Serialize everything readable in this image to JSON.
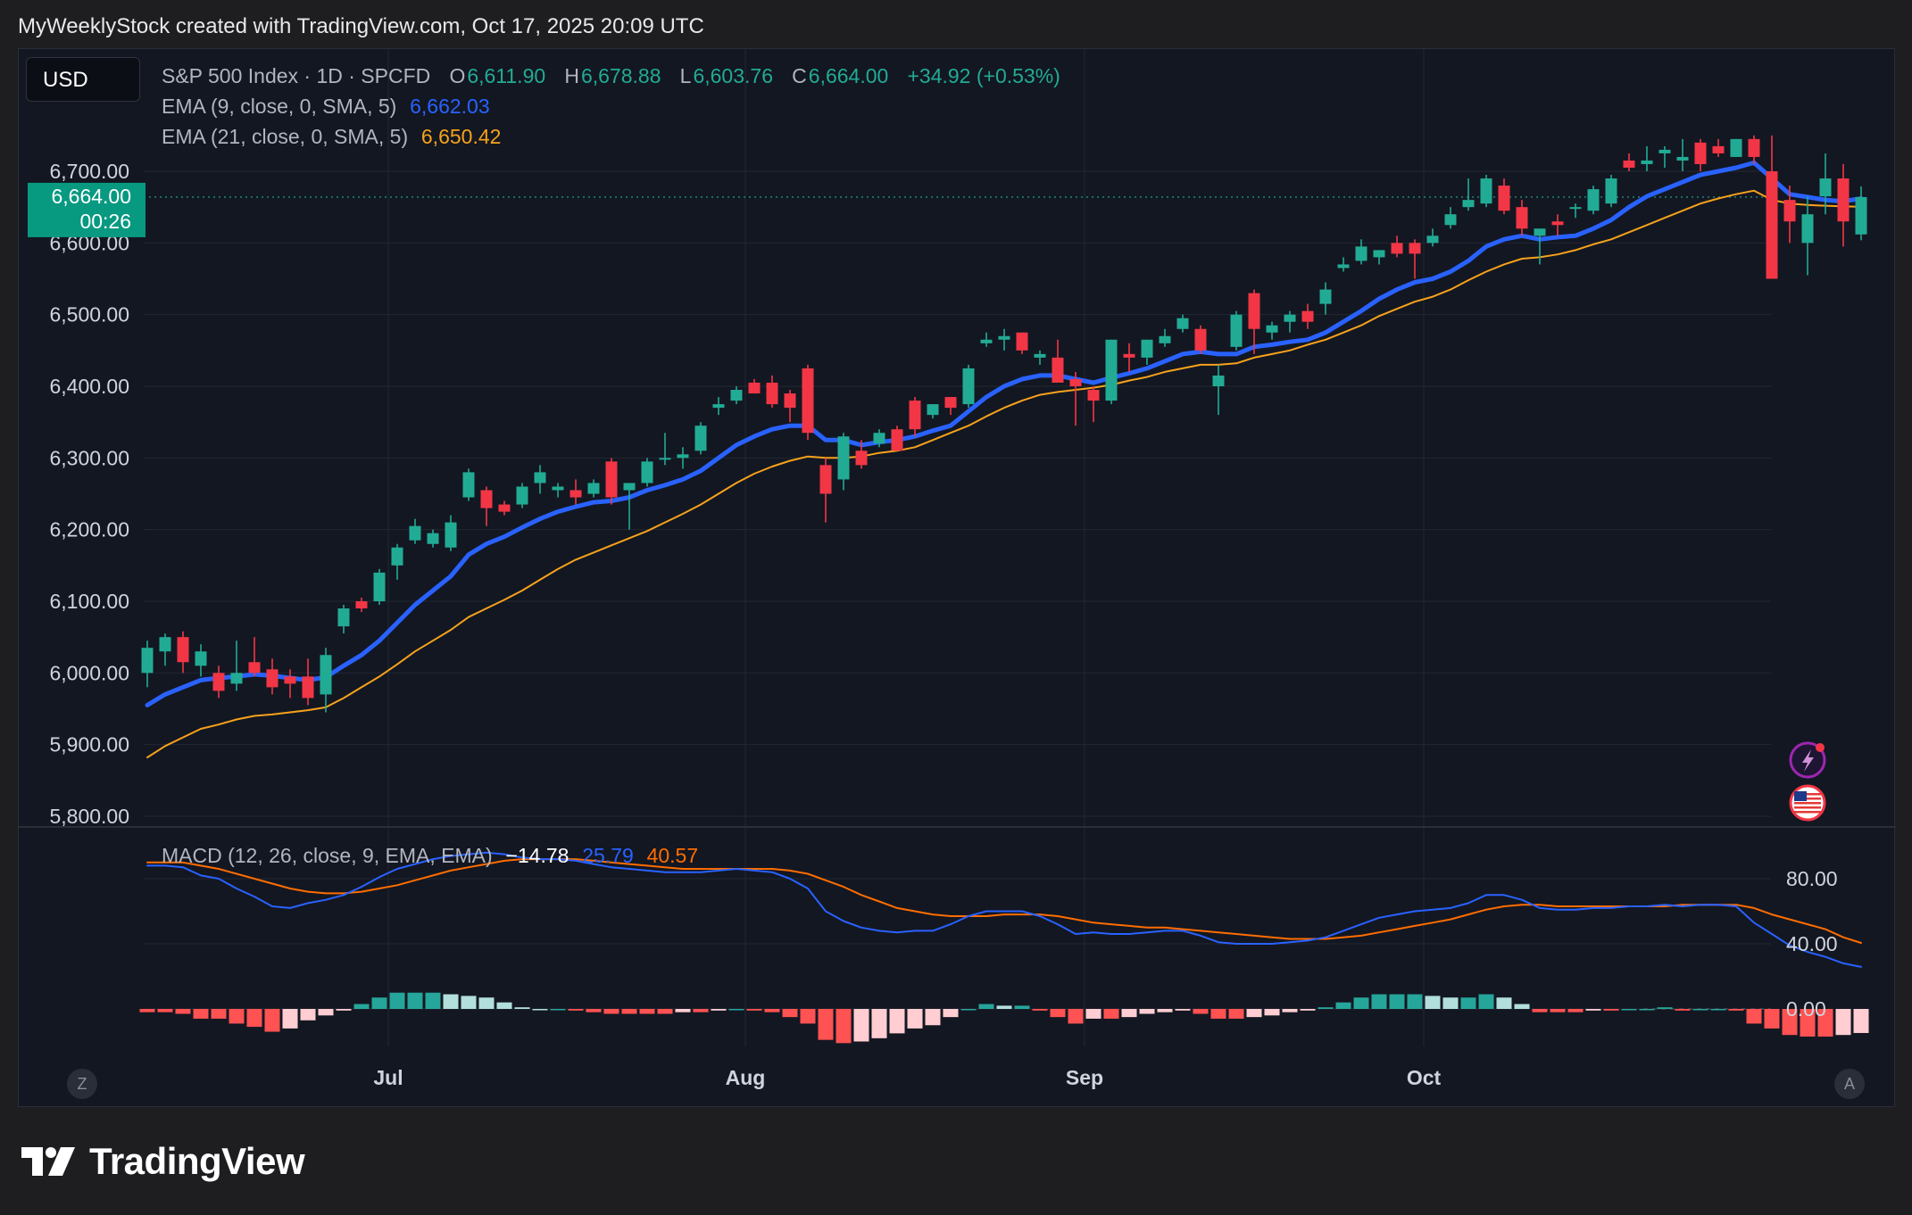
{
  "header": {
    "attribution": "MyWeeklyStock created with TradingView.com, Oct 17, 2025 20:09 UTC"
  },
  "toolbar": {
    "currency": "USD"
  },
  "legend": {
    "symbol": "S&P 500 Index · 1D · SPCFD",
    "o_label": "O",
    "o_value": "6,611.90",
    "h_label": "H",
    "h_value": "6,678.88",
    "l_label": "L",
    "l_value": "6,603.76",
    "c_label": "C",
    "c_value": "6,664.00",
    "change": "+34.92 (+0.53%)",
    "ema9_label": "EMA (9, close, 0, SMA, 5)",
    "ema9_value": "6,662.03",
    "ema21_label": "EMA (21, close, 0, SMA, 5)",
    "ema21_value": "6,650.42",
    "macd_label": "MACD (12, 26, close, 9, EMA, EMA)",
    "macd_hist_value": "−14.78",
    "macd_value": "25.79",
    "macd_signal_value": "40.57"
  },
  "price_tag": {
    "price": "6,664.00",
    "countdown": "00:26"
  },
  "buttons": {
    "left": "Z",
    "right": "A"
  },
  "footer": {
    "brand": "TradingView"
  },
  "colors": {
    "up": "#22ab94",
    "down": "#f23645",
    "ema9": "#2962ff",
    "ema21": "#f7a21b",
    "macd": "#2962ff",
    "signal": "#ff6d00",
    "hist_up_strong": "#26a69a",
    "hist_up_weak": "#b2dfdb",
    "hist_down_strong": "#ff5252",
    "hist_down_weak": "#ffcdd2"
  },
  "chart_data": [
    {
      "type": "candlestick",
      "title": "",
      "price_axis_ticks": [
        "6,700.00",
        "6,600.00",
        "6,500.00",
        "6,400.00",
        "6,300.00",
        "6,200.00",
        "6,100.00",
        "6,000.00",
        "5,900.00",
        "5,800.00"
      ],
      "price_tick_values": [
        6700,
        6600,
        6500,
        6400,
        6300,
        6200,
        6100,
        6000,
        5900,
        5800
      ],
      "ylim": [
        5800,
        6740
      ],
      "time_axis_labels": [
        "Jul",
        "Aug",
        "Sep",
        "Oct"
      ],
      "time_axis_index": [
        13.5,
        33.5,
        52.5,
        71.5
      ],
      "candles": [
        {
          "o": 6000,
          "h": 6045,
          "l": 5980,
          "c": 6035
        },
        {
          "o": 6030,
          "h": 6055,
          "l": 6010,
          "c": 6050
        },
        {
          "o": 6050,
          "h": 6058,
          "l": 6000,
          "c": 6015
        },
        {
          "o": 6010,
          "h": 6040,
          "l": 5995,
          "c": 6030
        },
        {
          "o": 6000,
          "h": 6010,
          "l": 5965,
          "c": 5975
        },
        {
          "o": 5985,
          "h": 6045,
          "l": 5975,
          "c": 6000
        },
        {
          "o": 6015,
          "h": 6050,
          "l": 5995,
          "c": 6000
        },
        {
          "o": 6005,
          "h": 6020,
          "l": 5970,
          "c": 5980
        },
        {
          "o": 5995,
          "h": 6005,
          "l": 5965,
          "c": 5985
        },
        {
          "o": 5995,
          "h": 6020,
          "l": 5955,
          "c": 5965
        },
        {
          "o": 5970,
          "h": 6035,
          "l": 5945,
          "c": 6025
        },
        {
          "o": 6065,
          "h": 6095,
          "l": 6055,
          "c": 6090
        },
        {
          "o": 6100,
          "h": 6105,
          "l": 6085,
          "c": 6090
        },
        {
          "o": 6100,
          "h": 6145,
          "l": 6095,
          "c": 6140
        },
        {
          "o": 6150,
          "h": 6180,
          "l": 6130,
          "c": 6175
        },
        {
          "o": 6185,
          "h": 6215,
          "l": 6180,
          "c": 6205
        },
        {
          "o": 6180,
          "h": 6200,
          "l": 6175,
          "c": 6195
        },
        {
          "o": 6175,
          "h": 6220,
          "l": 6170,
          "c": 6210
        },
        {
          "o": 6245,
          "h": 6285,
          "l": 6240,
          "c": 6280
        },
        {
          "o": 6255,
          "h": 6260,
          "l": 6205,
          "c": 6230
        },
        {
          "o": 6235,
          "h": 6240,
          "l": 6220,
          "c": 6225
        },
        {
          "o": 6235,
          "h": 6265,
          "l": 6230,
          "c": 6260
        },
        {
          "o": 6265,
          "h": 6290,
          "l": 6250,
          "c": 6280
        },
        {
          "o": 6255,
          "h": 6265,
          "l": 6245,
          "c": 6260
        },
        {
          "o": 6255,
          "h": 6270,
          "l": 6235,
          "c": 6245
        },
        {
          "o": 6250,
          "h": 6270,
          "l": 6245,
          "c": 6265
        },
        {
          "o": 6295,
          "h": 6300,
          "l": 6235,
          "c": 6245
        },
        {
          "o": 6255,
          "h": 6260,
          "l": 6200,
          "c": 6265
        },
        {
          "o": 6265,
          "h": 6300,
          "l": 6260,
          "c": 6295
        },
        {
          "o": 6300,
          "h": 6335,
          "l": 6290,
          "c": 6300
        },
        {
          "o": 6300,
          "h": 6315,
          "l": 6285,
          "c": 6305
        },
        {
          "o": 6310,
          "h": 6350,
          "l": 6305,
          "c": 6345
        },
        {
          "o": 6370,
          "h": 6385,
          "l": 6360,
          "c": 6375
        },
        {
          "o": 6380,
          "h": 6400,
          "l": 6375,
          "c": 6395
        },
        {
          "o": 6405,
          "h": 6410,
          "l": 6390,
          "c": 6390
        },
        {
          "o": 6405,
          "h": 6415,
          "l": 6370,
          "c": 6375
        },
        {
          "o": 6390,
          "h": 6395,
          "l": 6350,
          "c": 6370
        },
        {
          "o": 6425,
          "h": 6430,
          "l": 6325,
          "c": 6335
        },
        {
          "o": 6290,
          "h": 6300,
          "l": 6210,
          "c": 6250
        },
        {
          "o": 6270,
          "h": 6335,
          "l": 6255,
          "c": 6330
        },
        {
          "o": 6310,
          "h": 6325,
          "l": 6285,
          "c": 6290
        },
        {
          "o": 6320,
          "h": 6340,
          "l": 6315,
          "c": 6335
        },
        {
          "o": 6340,
          "h": 6345,
          "l": 6310,
          "c": 6310
        },
        {
          "o": 6380,
          "h": 6385,
          "l": 6330,
          "c": 6340
        },
        {
          "o": 6360,
          "h": 6375,
          "l": 6355,
          "c": 6375
        },
        {
          "o": 6385,
          "h": 6385,
          "l": 6360,
          "c": 6370
        },
        {
          "o": 6375,
          "h": 6430,
          "l": 6370,
          "c": 6425
        },
        {
          "o": 6460,
          "h": 6475,
          "l": 6455,
          "c": 6465
        },
        {
          "o": 6465,
          "h": 6480,
          "l": 6450,
          "c": 6470
        },
        {
          "o": 6475,
          "h": 6475,
          "l": 6445,
          "c": 6450
        },
        {
          "o": 6440,
          "h": 6450,
          "l": 6430,
          "c": 6445
        },
        {
          "o": 6440,
          "h": 6465,
          "l": 6410,
          "c": 6405
        },
        {
          "o": 6410,
          "h": 6420,
          "l": 6345,
          "c": 6400
        },
        {
          "o": 6395,
          "h": 6400,
          "l": 6350,
          "c": 6380
        },
        {
          "o": 6380,
          "h": 6465,
          "l": 6375,
          "c": 6465
        },
        {
          "o": 6445,
          "h": 6460,
          "l": 6420,
          "c": 6440
        },
        {
          "o": 6440,
          "h": 6465,
          "l": 6430,
          "c": 6465
        },
        {
          "o": 6460,
          "h": 6480,
          "l": 6455,
          "c": 6470
        },
        {
          "o": 6480,
          "h": 6500,
          "l": 6475,
          "c": 6495
        },
        {
          "o": 6480,
          "h": 6485,
          "l": 6445,
          "c": 6450
        },
        {
          "o": 6400,
          "h": 6430,
          "l": 6360,
          "c": 6415
        },
        {
          "o": 6455,
          "h": 6505,
          "l": 6450,
          "c": 6500
        },
        {
          "o": 6530,
          "h": 6535,
          "l": 6445,
          "c": 6480
        },
        {
          "o": 6475,
          "h": 6490,
          "l": 6465,
          "c": 6485
        },
        {
          "o": 6490,
          "h": 6505,
          "l": 6475,
          "c": 6500
        },
        {
          "o": 6505,
          "h": 6515,
          "l": 6480,
          "c": 6490
        },
        {
          "o": 6515,
          "h": 6545,
          "l": 6500,
          "c": 6535
        },
        {
          "o": 6565,
          "h": 6580,
          "l": 6560,
          "c": 6570
        },
        {
          "o": 6575,
          "h": 6605,
          "l": 6570,
          "c": 6595
        },
        {
          "o": 6580,
          "h": 6590,
          "l": 6570,
          "c": 6590
        },
        {
          "o": 6600,
          "h": 6610,
          "l": 6580,
          "c": 6585
        },
        {
          "o": 6600,
          "h": 6605,
          "l": 6550,
          "c": 6585
        },
        {
          "o": 6600,
          "h": 6620,
          "l": 6595,
          "c": 6610
        },
        {
          "o": 6625,
          "h": 6650,
          "l": 6620,
          "c": 6640
        },
        {
          "o": 6650,
          "h": 6690,
          "l": 6645,
          "c": 6660
        },
        {
          "o": 6655,
          "h": 6695,
          "l": 6650,
          "c": 6690
        },
        {
          "o": 6680,
          "h": 6690,
          "l": 6640,
          "c": 6645
        },
        {
          "o": 6650,
          "h": 6660,
          "l": 6610,
          "c": 6620
        },
        {
          "o": 6610,
          "h": 6620,
          "l": 6570,
          "c": 6620
        },
        {
          "o": 6630,
          "h": 6640,
          "l": 6610,
          "c": 6625
        },
        {
          "o": 6650,
          "h": 6655,
          "l": 6635,
          "c": 6650
        },
        {
          "o": 6645,
          "h": 6680,
          "l": 6640,
          "c": 6675
        },
        {
          "o": 6655,
          "h": 6695,
          "l": 6650,
          "c": 6690
        },
        {
          "o": 6715,
          "h": 6725,
          "l": 6700,
          "c": 6705
        },
        {
          "o": 6710,
          "h": 6735,
          "l": 6700,
          "c": 6715
        },
        {
          "o": 6725,
          "h": 6735,
          "l": 6705,
          "c": 6730
        },
        {
          "o": 6715,
          "h": 6745,
          "l": 6700,
          "c": 6720
        },
        {
          "o": 6740,
          "h": 6745,
          "l": 6700,
          "c": 6710
        },
        {
          "o": 6735,
          "h": 6745,
          "l": 6720,
          "c": 6725
        },
        {
          "o": 6720,
          "h": 6745,
          "l": 6720,
          "c": 6745
        },
        {
          "o": 6745,
          "h": 6750,
          "l": 6710,
          "c": 6720
        },
        {
          "o": 6700,
          "h": 6750,
          "l": 6550,
          "c": 6550
        },
        {
          "o": 6660,
          "h": 6680,
          "l": 6600,
          "c": 6630
        },
        {
          "o": 6600,
          "h": 6665,
          "l": 6555,
          "c": 6640
        },
        {
          "o": 6665,
          "h": 6725,
          "l": 6640,
          "c": 6690
        },
        {
          "o": 6690,
          "h": 6710,
          "l": 6595,
          "c": 6630
        },
        {
          "o": 6611.9,
          "h": 6678.88,
          "l": 6603.76,
          "c": 6664
        }
      ],
      "ema9": [
        5955,
        5970,
        5980,
        5990,
        5993,
        5995,
        5998,
        5996,
        5993,
        5990,
        5994,
        6010,
        6025,
        6045,
        6070,
        6095,
        6115,
        6135,
        6165,
        6180,
        6190,
        6203,
        6215,
        6225,
        6232,
        6238,
        6240,
        6245,
        6255,
        6262,
        6270,
        6282,
        6300,
        6318,
        6330,
        6340,
        6345,
        6345,
        6325,
        6325,
        6318,
        6322,
        6325,
        6330,
        6338,
        6345,
        6365,
        6385,
        6400,
        6410,
        6415,
        6415,
        6410,
        6405,
        6412,
        6418,
        6425,
        6435,
        6445,
        6448,
        6445,
        6445,
        6455,
        6458,
        6462,
        6465,
        6475,
        6490,
        6505,
        6522,
        6535,
        6545,
        6550,
        6560,
        6575,
        6595,
        6605,
        6610,
        6605,
        6608,
        6610,
        6620,
        6632,
        6650,
        6665,
        6675,
        6685,
        6695,
        6700,
        6705,
        6712,
        6690,
        6668,
        6664,
        6660,
        6658,
        6662.03
      ],
      "ema21": [
        5882,
        5898,
        5910,
        5922,
        5928,
        5935,
        5940,
        5942,
        5945,
        5948,
        5952,
        5965,
        5980,
        5995,
        6012,
        6030,
        6045,
        6060,
        6078,
        6090,
        6102,
        6115,
        6130,
        6145,
        6158,
        6168,
        6178,
        6188,
        6198,
        6210,
        6222,
        6235,
        6250,
        6265,
        6278,
        6288,
        6296,
        6302,
        6300,
        6300,
        6302,
        6307,
        6310,
        6315,
        6325,
        6335,
        6345,
        6358,
        6370,
        6380,
        6388,
        6392,
        6395,
        6398,
        6402,
        6408,
        6413,
        6420,
        6425,
        6430,
        6430,
        6432,
        6440,
        6445,
        6450,
        6458,
        6465,
        6475,
        6485,
        6498,
        6508,
        6518,
        6525,
        6535,
        6548,
        6560,
        6570,
        6578,
        6580,
        6584,
        6590,
        6598,
        6605,
        6615,
        6625,
        6635,
        6645,
        6655,
        6662,
        6668,
        6673,
        6660,
        6655,
        6653,
        6652,
        6651,
        6650.42
      ],
      "signals_last_index": 96
    },
    {
      "type": "macd",
      "title": "",
      "y_ticks": [
        "80.00",
        "40.00",
        "0.00"
      ],
      "y_tick_values": [
        80,
        40,
        0
      ],
      "ylim": [
        -18,
        100
      ],
      "macd": [
        88,
        88,
        87,
        82,
        80,
        74,
        69,
        63,
        62,
        65,
        67,
        70,
        75,
        81,
        86,
        89,
        92,
        94,
        95,
        96,
        95,
        93,
        92,
        92,
        91,
        89,
        87,
        86,
        85,
        84,
        84,
        84,
        85,
        86,
        85,
        84,
        80,
        74,
        60,
        54,
        50,
        48,
        47,
        48,
        48,
        52,
        57,
        60,
        60,
        60,
        57,
        52,
        46,
        47,
        46,
        46,
        47,
        48,
        48,
        45,
        41,
        40,
        40,
        40,
        41,
        42,
        44,
        48,
        52,
        56,
        58,
        60,
        61,
        62,
        65,
        70,
        70,
        67,
        62,
        61,
        61,
        62,
        62,
        63,
        63,
        64,
        63,
        64,
        64,
        63,
        53,
        46,
        39,
        35,
        32,
        28,
        25.79
      ],
      "signal": [
        90,
        90,
        90,
        88,
        86,
        83,
        80,
        77,
        74,
        72,
        71,
        71,
        72,
        74,
        76,
        79,
        82,
        85,
        87,
        89,
        91,
        92,
        92,
        92,
        92,
        91,
        90,
        89,
        88,
        87,
        86,
        86,
        86,
        86,
        86,
        86,
        85,
        83,
        79,
        75,
        70,
        66,
        62,
        60,
        58,
        57,
        57,
        57,
        58,
        58,
        58,
        57,
        55,
        53,
        52,
        51,
        50,
        50,
        49,
        48,
        47,
        46,
        45,
        44,
        43,
        43,
        43,
        44,
        45,
        47,
        49,
        51,
        53,
        55,
        58,
        61,
        63,
        64,
        64,
        63,
        63,
        63,
        63,
        63,
        63,
        63,
        64,
        64,
        64,
        64,
        62,
        58,
        55,
        52,
        49,
        44,
        40.57
      ],
      "histogram": [
        -2,
        -2,
        -3,
        -6,
        -6,
        -9,
        -11,
        -14,
        -12,
        -7,
        -4,
        -1,
        3,
        7,
        10,
        10,
        10,
        9,
        8,
        7,
        4,
        1,
        0,
        0,
        -1,
        -2,
        -3,
        -3,
        -3,
        -3,
        -2,
        -2,
        -1,
        0,
        -1,
        -2,
        -5,
        -9,
        -19,
        -21,
        -20,
        -18,
        -15,
        -12,
        -10,
        -5,
        0,
        3,
        2,
        2,
        -1,
        -5,
        -9,
        -6,
        -6,
        -5,
        -3,
        -2,
        -1,
        -3,
        -6,
        -6,
        -5,
        -4,
        -2,
        -1,
        1,
        4,
        7,
        9,
        9,
        9,
        8,
        7,
        7,
        9,
        7,
        3,
        -2,
        -2,
        -2,
        -1,
        -1,
        0,
        0,
        1,
        -1,
        0,
        0,
        -1,
        -9,
        -12,
        -16,
        -17,
        -17,
        -16,
        -14.78
      ]
    }
  ]
}
